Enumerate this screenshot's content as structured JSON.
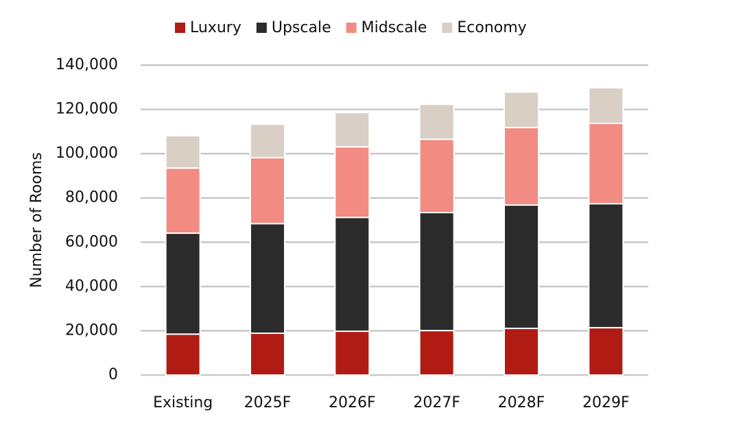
{
  "chart_data": {
    "type": "stacked_bar",
    "y_label": "Number of Rooms",
    "categories": [
      "Existing",
      "2025F",
      "2026F",
      "2027F",
      "2028F",
      "2029F"
    ],
    "series": [
      {
        "name": "Luxury",
        "color": "#b01c14",
        "values": [
          18500,
          18900,
          19800,
          20100,
          21100,
          21400
        ]
      },
      {
        "name": "Upscale",
        "color": "#2b2b2b",
        "values": [
          45600,
          49500,
          51400,
          53300,
          55700,
          56000
        ]
      },
      {
        "name": "Midscale",
        "color": "#f28b82",
        "values": [
          29400,
          29800,
          31900,
          33100,
          35000,
          36300
        ]
      },
      {
        "name": "Economy",
        "color": "#d9cfc5",
        "values": [
          14600,
          15100,
          15500,
          15800,
          16100,
          16100
        ]
      }
    ],
    "ylim": [
      0,
      140000
    ],
    "yticks": [
      0,
      {
        "value": 20000,
        "label": "20,000"
      },
      {
        "value": 40000,
        "label": "40,000"
      },
      {
        "value": 60000,
        "label": "60,000"
      },
      {
        "value": 80000,
        "label": "80,000"
      },
      {
        "value": 100000,
        "label": "100,000"
      },
      {
        "value": 120000,
        "label": "120,000"
      },
      {
        "value": 140000,
        "label": "140,000"
      }
    ],
    "grid": true,
    "legend": "top"
  }
}
